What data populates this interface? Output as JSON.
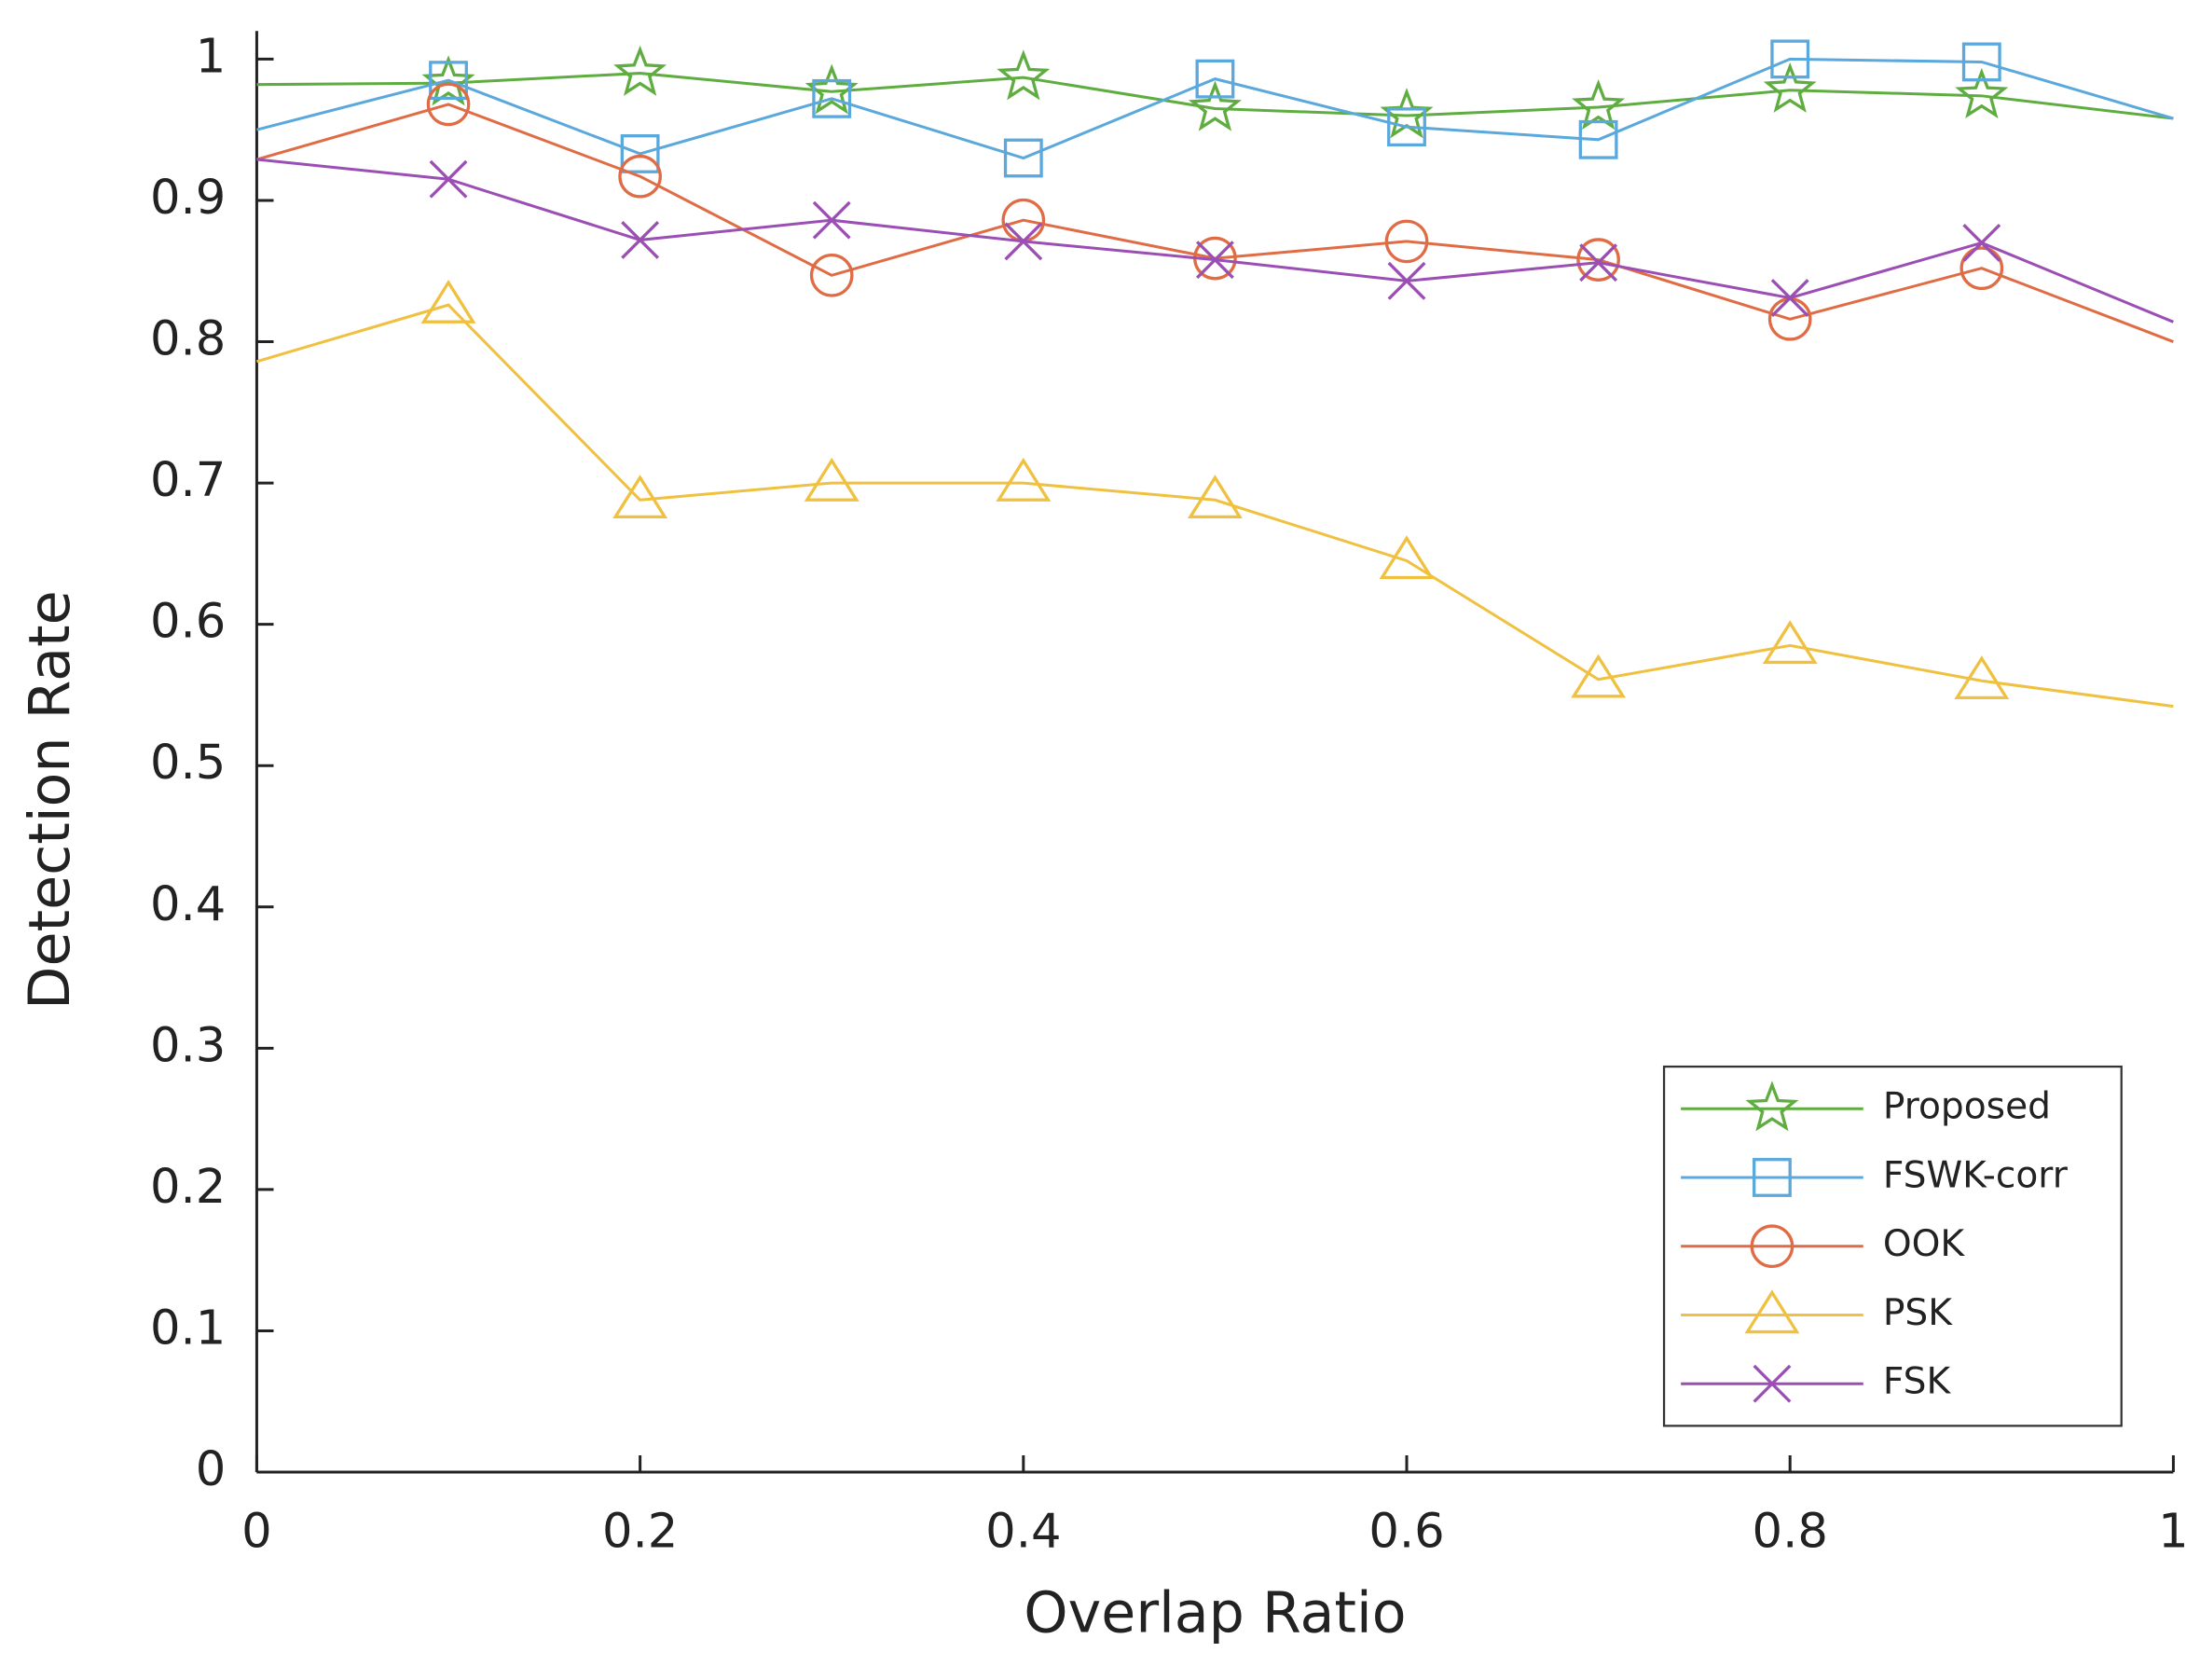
{
  "chart_data": {
    "type": "line",
    "xlabel": "Overlap Ratio",
    "ylabel": "Detection Rate",
    "x": [
      0,
      0.1,
      0.2,
      0.3,
      0.4,
      0.5,
      0.6,
      0.7,
      0.8,
      0.9,
      1
    ],
    "xlim": [
      0,
      1
    ],
    "xticks": [
      0,
      0.2,
      0.4,
      0.6,
      0.8,
      1
    ],
    "ylim": [
      0,
      1
    ],
    "yticks": [
      0,
      0.1,
      0.2,
      0.3,
      0.4,
      0.5,
      0.6,
      0.7,
      0.8,
      0.9,
      1
    ],
    "legend": "lower right",
    "grid": false,
    "series": [
      {
        "name": "Proposed",
        "color": "#5fad41",
        "marker": "star",
        "values": [
          0.982,
          0.983,
          0.99,
          0.977,
          0.987,
          0.965,
          0.96,
          0.966,
          0.978,
          0.974,
          0.958
        ]
      },
      {
        "name": "FSWK-corr",
        "color": "#5aa8dc",
        "marker": "square",
        "values": [
          0.95,
          0.985,
          0.933,
          0.972,
          0.93,
          0.986,
          0.952,
          0.943,
          1.0,
          0.998,
          0.958
        ]
      },
      {
        "name": "OOK",
        "color": "#e06c45",
        "marker": "circle",
        "values": [
          0.929,
          0.968,
          0.917,
          0.847,
          0.886,
          0.859,
          0.871,
          0.858,
          0.816,
          0.852,
          0.8
        ]
      },
      {
        "name": "PSK",
        "color": "#f0c040",
        "marker": "triangle",
        "values": [
          0.786,
          0.826,
          0.688,
          0.7,
          0.7,
          0.688,
          0.645,
          0.561,
          0.585,
          0.56,
          0.542
        ]
      },
      {
        "name": "FSK",
        "color": "#9b4fb4",
        "marker": "x",
        "values": [
          0.929,
          0.915,
          0.872,
          0.886,
          0.871,
          0.858,
          0.843,
          0.856,
          0.831,
          0.87,
          0.814
        ]
      }
    ]
  }
}
